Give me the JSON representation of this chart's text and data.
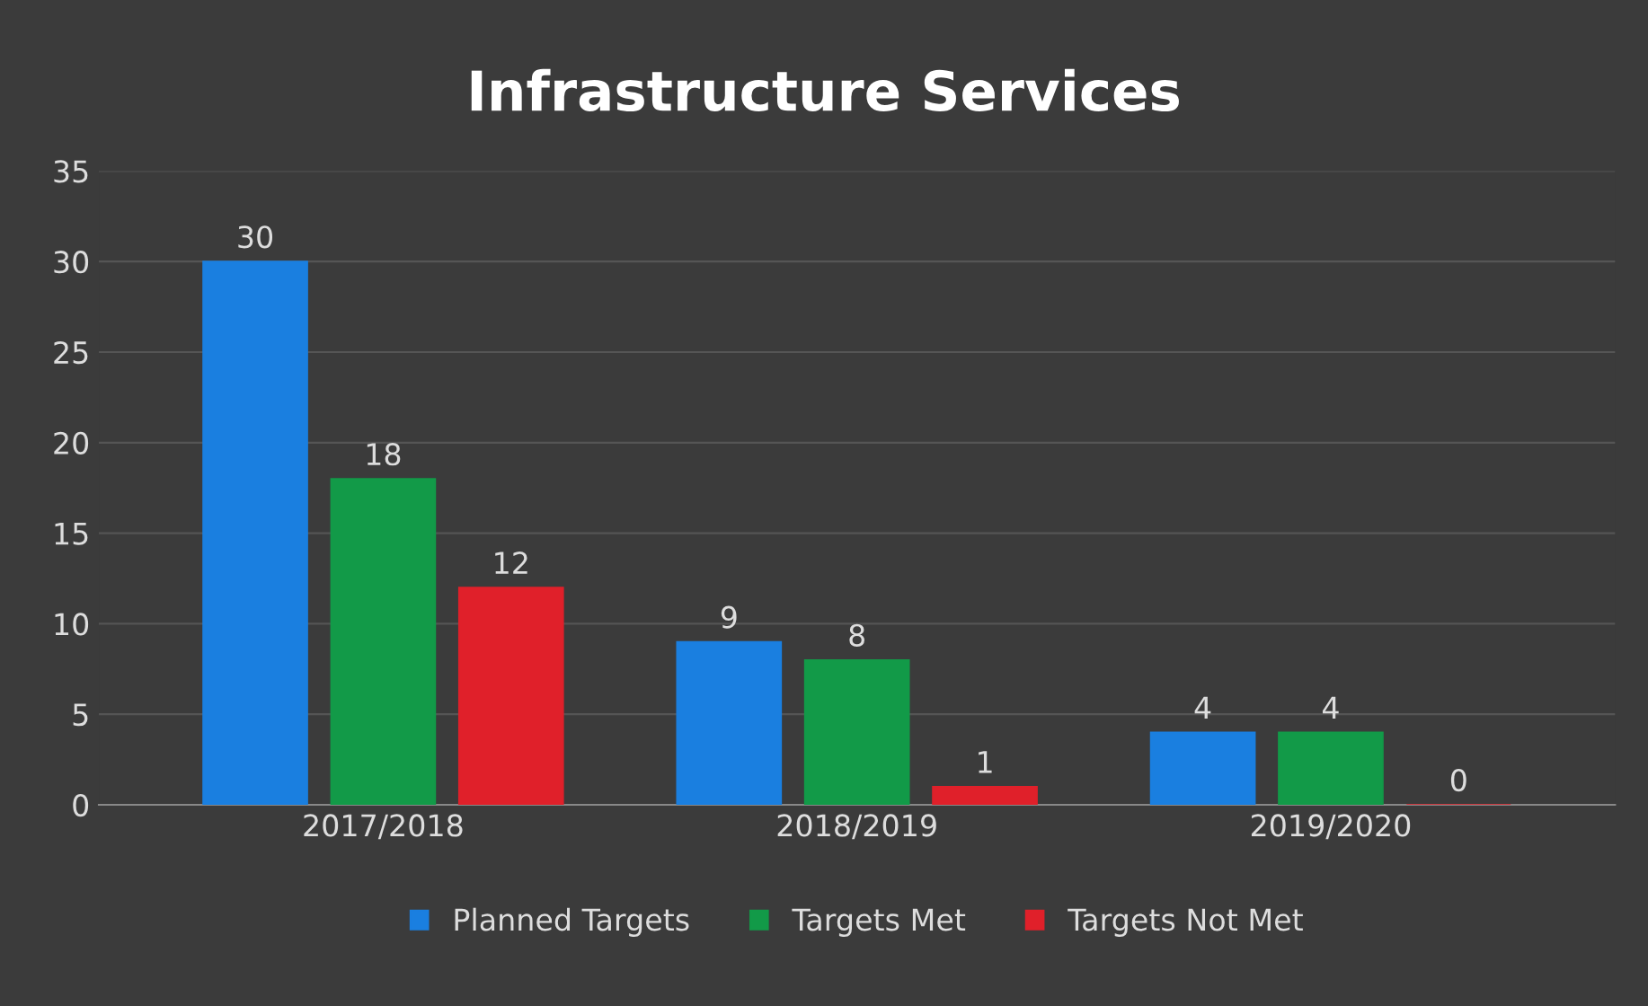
{
  "chart_data": {
    "type": "bar",
    "title": "Infrastructure Services",
    "categories": [
      "2017/2018",
      "2018/2019",
      "2019/2020"
    ],
    "series": [
      {
        "name": "Planned Targets",
        "color": "#1a7fe0",
        "values": [
          30,
          9,
          4
        ]
      },
      {
        "name": "Targets Met",
        "color": "#129a48",
        "values": [
          18,
          8,
          4
        ]
      },
      {
        "name": "Targets Not Met",
        "color": "#e0202a",
        "values": [
          12,
          1,
          0
        ]
      }
    ],
    "ylim": [
      0,
      35
    ],
    "yticks": [
      0,
      5,
      10,
      15,
      20,
      25,
      30,
      35
    ],
    "grid": "y",
    "legend": "bottom",
    "data_labels": true
  }
}
